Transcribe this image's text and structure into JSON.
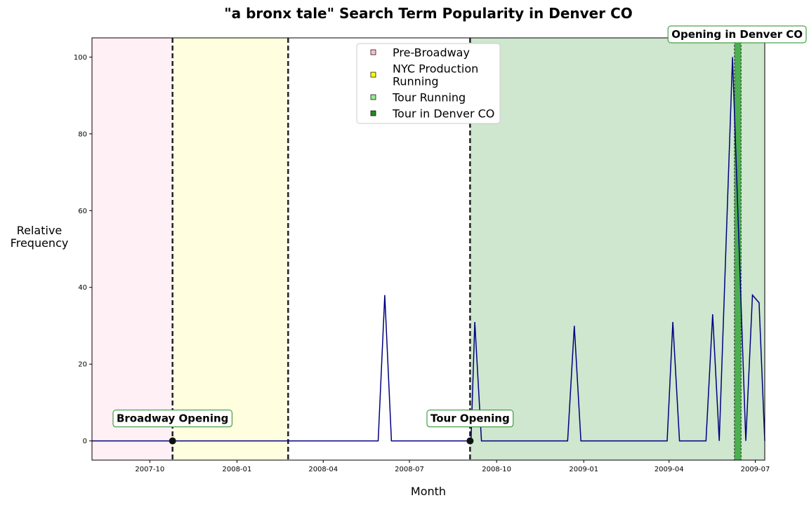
{
  "chart_data": {
    "type": "line",
    "title": "\"a bronx tale\" Search Term Popularity in Denver CO",
    "xlabel": "Month",
    "ylabel": [
      "Relative",
      "Frequency"
    ],
    "xlim": [
      "2007-08-01",
      "2009-07-11"
    ],
    "ylim": [
      -5,
      105
    ],
    "x_ticks": [
      "2007-10",
      "2008-01",
      "2008-04",
      "2008-07",
      "2008-10",
      "2009-01",
      "2009-04",
      "2009-07"
    ],
    "y_ticks": [
      0,
      20,
      40,
      60,
      80,
      100
    ],
    "grid": false,
    "series": [
      {
        "color": "#000080",
        "points": [
          [
            "2007-08-01",
            0
          ],
          [
            "2007-08-05",
            0
          ],
          [
            "2008-05-29",
            0
          ],
          [
            "2008-06-05",
            38
          ],
          [
            "2008-06-12",
            0
          ],
          [
            "2008-09-04",
            0
          ],
          [
            "2008-09-08",
            31
          ],
          [
            "2008-09-15",
            0
          ],
          [
            "2008-12-15",
            0
          ],
          [
            "2008-12-22",
            30
          ],
          [
            "2008-12-29",
            0
          ],
          [
            "2009-03-30",
            0
          ],
          [
            "2009-04-05",
            31
          ],
          [
            "2009-04-12",
            0
          ],
          [
            "2009-05-10",
            0
          ],
          [
            "2009-05-17",
            33
          ],
          [
            "2009-05-24",
            0
          ],
          [
            "2009-06-07",
            100
          ],
          [
            "2009-06-21",
            0
          ],
          [
            "2009-06-28",
            38
          ],
          [
            "2009-07-05",
            36
          ],
          [
            "2009-07-11",
            0
          ]
        ]
      }
    ],
    "regions": [
      {
        "key": "pre_broadway",
        "start": "2007-08-01",
        "end": "2007-10-25",
        "color": "#fff0f5"
      },
      {
        "key": "nyc_running",
        "start": "2007-10-25",
        "end": "2008-02-24",
        "color": "#ffffe0"
      },
      {
        "key": "tour_running",
        "start": "2008-09-03",
        "end": "2009-07-11",
        "color": "#cfe6cf"
      },
      {
        "key": "tour_denver",
        "start": "2009-06-09",
        "end": "2009-06-16",
        "color": "#4caf50"
      }
    ],
    "event_lines": [
      {
        "date": "2007-10-25",
        "style": "heavy"
      },
      {
        "date": "2008-02-24",
        "style": "heavy"
      },
      {
        "date": "2008-09-03",
        "style": "heavy"
      },
      {
        "date": "2009-06-09",
        "style": "thin"
      },
      {
        "date": "2009-06-16",
        "style": "thin"
      }
    ],
    "event_markers": [
      {
        "date": "2007-10-25",
        "value": 0,
        "label": "Broadway Opening"
      },
      {
        "date": "2008-09-03",
        "value": 0,
        "label": "Tour Opening"
      }
    ],
    "top_annotation": {
      "date": "2009-06-12",
      "label": "Opening in Denver CO"
    },
    "legend": {
      "position": "top-center",
      "entries": [
        {
          "lines": [
            "Pre-Broadway"
          ],
          "color": "#ffc0cb"
        },
        {
          "lines": [
            "NYC Production",
            "Running"
          ],
          "color": "#ffff00"
        },
        {
          "lines": [
            "Tour Running"
          ],
          "color": "#90ee90"
        },
        {
          "lines": [
            "Tour in Denver CO"
          ],
          "color": "#228b22"
        }
      ]
    }
  }
}
